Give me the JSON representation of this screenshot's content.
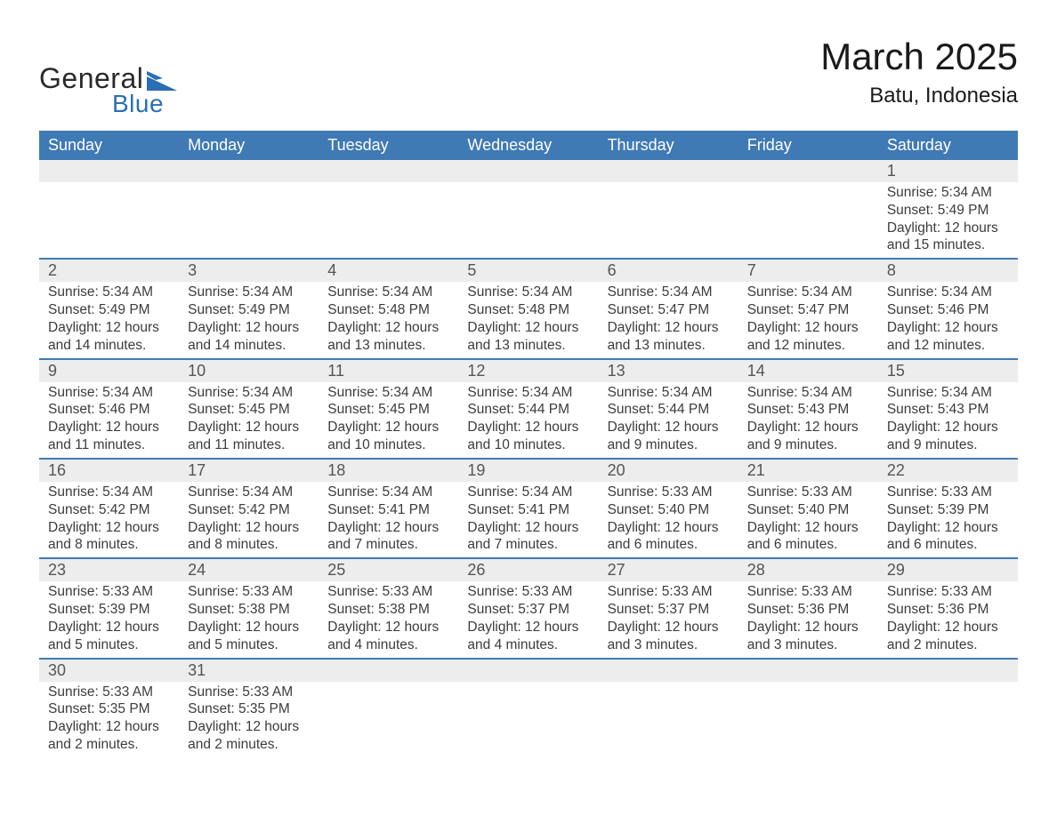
{
  "logo": {
    "word1": "General",
    "word2": "Blue",
    "text_color": "#2a2a2a",
    "accent_color": "#2a6fb3"
  },
  "title": {
    "month_year": "March 2025",
    "location": "Batu, Indonesia"
  },
  "colors": {
    "header_bg": "#3f7ab5",
    "header_text": "#ffffff",
    "row_separator": "#3f7ab5",
    "daynum_bg": "#ededed",
    "details_bg": "#ffffff",
    "body_text": "#3c3c3c",
    "daynum_text": "#555555"
  },
  "weekdays": [
    "Sunday",
    "Monday",
    "Tuesday",
    "Wednesday",
    "Thursday",
    "Friday",
    "Saturday"
  ],
  "weeks": [
    [
      null,
      null,
      null,
      null,
      null,
      null,
      {
        "n": "1",
        "sunrise": "Sunrise: 5:34 AM",
        "sunset": "Sunset: 5:49 PM",
        "daylight": "Daylight: 12 hours and 15 minutes."
      }
    ],
    [
      {
        "n": "2",
        "sunrise": "Sunrise: 5:34 AM",
        "sunset": "Sunset: 5:49 PM",
        "daylight": "Daylight: 12 hours and 14 minutes."
      },
      {
        "n": "3",
        "sunrise": "Sunrise: 5:34 AM",
        "sunset": "Sunset: 5:49 PM",
        "daylight": "Daylight: 12 hours and 14 minutes."
      },
      {
        "n": "4",
        "sunrise": "Sunrise: 5:34 AM",
        "sunset": "Sunset: 5:48 PM",
        "daylight": "Daylight: 12 hours and 13 minutes."
      },
      {
        "n": "5",
        "sunrise": "Sunrise: 5:34 AM",
        "sunset": "Sunset: 5:48 PM",
        "daylight": "Daylight: 12 hours and 13 minutes."
      },
      {
        "n": "6",
        "sunrise": "Sunrise: 5:34 AM",
        "sunset": "Sunset: 5:47 PM",
        "daylight": "Daylight: 12 hours and 13 minutes."
      },
      {
        "n": "7",
        "sunrise": "Sunrise: 5:34 AM",
        "sunset": "Sunset: 5:47 PM",
        "daylight": "Daylight: 12 hours and 12 minutes."
      },
      {
        "n": "8",
        "sunrise": "Sunrise: 5:34 AM",
        "sunset": "Sunset: 5:46 PM",
        "daylight": "Daylight: 12 hours and 12 minutes."
      }
    ],
    [
      {
        "n": "9",
        "sunrise": "Sunrise: 5:34 AM",
        "sunset": "Sunset: 5:46 PM",
        "daylight": "Daylight: 12 hours and 11 minutes."
      },
      {
        "n": "10",
        "sunrise": "Sunrise: 5:34 AM",
        "sunset": "Sunset: 5:45 PM",
        "daylight": "Daylight: 12 hours and 11 minutes."
      },
      {
        "n": "11",
        "sunrise": "Sunrise: 5:34 AM",
        "sunset": "Sunset: 5:45 PM",
        "daylight": "Daylight: 12 hours and 10 minutes."
      },
      {
        "n": "12",
        "sunrise": "Sunrise: 5:34 AM",
        "sunset": "Sunset: 5:44 PM",
        "daylight": "Daylight: 12 hours and 10 minutes."
      },
      {
        "n": "13",
        "sunrise": "Sunrise: 5:34 AM",
        "sunset": "Sunset: 5:44 PM",
        "daylight": "Daylight: 12 hours and 9 minutes."
      },
      {
        "n": "14",
        "sunrise": "Sunrise: 5:34 AM",
        "sunset": "Sunset: 5:43 PM",
        "daylight": "Daylight: 12 hours and 9 minutes."
      },
      {
        "n": "15",
        "sunrise": "Sunrise: 5:34 AM",
        "sunset": "Sunset: 5:43 PM",
        "daylight": "Daylight: 12 hours and 9 minutes."
      }
    ],
    [
      {
        "n": "16",
        "sunrise": "Sunrise: 5:34 AM",
        "sunset": "Sunset: 5:42 PM",
        "daylight": "Daylight: 12 hours and 8 minutes."
      },
      {
        "n": "17",
        "sunrise": "Sunrise: 5:34 AM",
        "sunset": "Sunset: 5:42 PM",
        "daylight": "Daylight: 12 hours and 8 minutes."
      },
      {
        "n": "18",
        "sunrise": "Sunrise: 5:34 AM",
        "sunset": "Sunset: 5:41 PM",
        "daylight": "Daylight: 12 hours and 7 minutes."
      },
      {
        "n": "19",
        "sunrise": "Sunrise: 5:34 AM",
        "sunset": "Sunset: 5:41 PM",
        "daylight": "Daylight: 12 hours and 7 minutes."
      },
      {
        "n": "20",
        "sunrise": "Sunrise: 5:33 AM",
        "sunset": "Sunset: 5:40 PM",
        "daylight": "Daylight: 12 hours and 6 minutes."
      },
      {
        "n": "21",
        "sunrise": "Sunrise: 5:33 AM",
        "sunset": "Sunset: 5:40 PM",
        "daylight": "Daylight: 12 hours and 6 minutes."
      },
      {
        "n": "22",
        "sunrise": "Sunrise: 5:33 AM",
        "sunset": "Sunset: 5:39 PM",
        "daylight": "Daylight: 12 hours and 6 minutes."
      }
    ],
    [
      {
        "n": "23",
        "sunrise": "Sunrise: 5:33 AM",
        "sunset": "Sunset: 5:39 PM",
        "daylight": "Daylight: 12 hours and 5 minutes."
      },
      {
        "n": "24",
        "sunrise": "Sunrise: 5:33 AM",
        "sunset": "Sunset: 5:38 PM",
        "daylight": "Daylight: 12 hours and 5 minutes."
      },
      {
        "n": "25",
        "sunrise": "Sunrise: 5:33 AM",
        "sunset": "Sunset: 5:38 PM",
        "daylight": "Daylight: 12 hours and 4 minutes."
      },
      {
        "n": "26",
        "sunrise": "Sunrise: 5:33 AM",
        "sunset": "Sunset: 5:37 PM",
        "daylight": "Daylight: 12 hours and 4 minutes."
      },
      {
        "n": "27",
        "sunrise": "Sunrise: 5:33 AM",
        "sunset": "Sunset: 5:37 PM",
        "daylight": "Daylight: 12 hours and 3 minutes."
      },
      {
        "n": "28",
        "sunrise": "Sunrise: 5:33 AM",
        "sunset": "Sunset: 5:36 PM",
        "daylight": "Daylight: 12 hours and 3 minutes."
      },
      {
        "n": "29",
        "sunrise": "Sunrise: 5:33 AM",
        "sunset": "Sunset: 5:36 PM",
        "daylight": "Daylight: 12 hours and 2 minutes."
      }
    ],
    [
      {
        "n": "30",
        "sunrise": "Sunrise: 5:33 AM",
        "sunset": "Sunset: 5:35 PM",
        "daylight": "Daylight: 12 hours and 2 minutes."
      },
      {
        "n": "31",
        "sunrise": "Sunrise: 5:33 AM",
        "sunset": "Sunset: 5:35 PM",
        "daylight": "Daylight: 12 hours and 2 minutes."
      },
      null,
      null,
      null,
      null,
      null
    ]
  ]
}
